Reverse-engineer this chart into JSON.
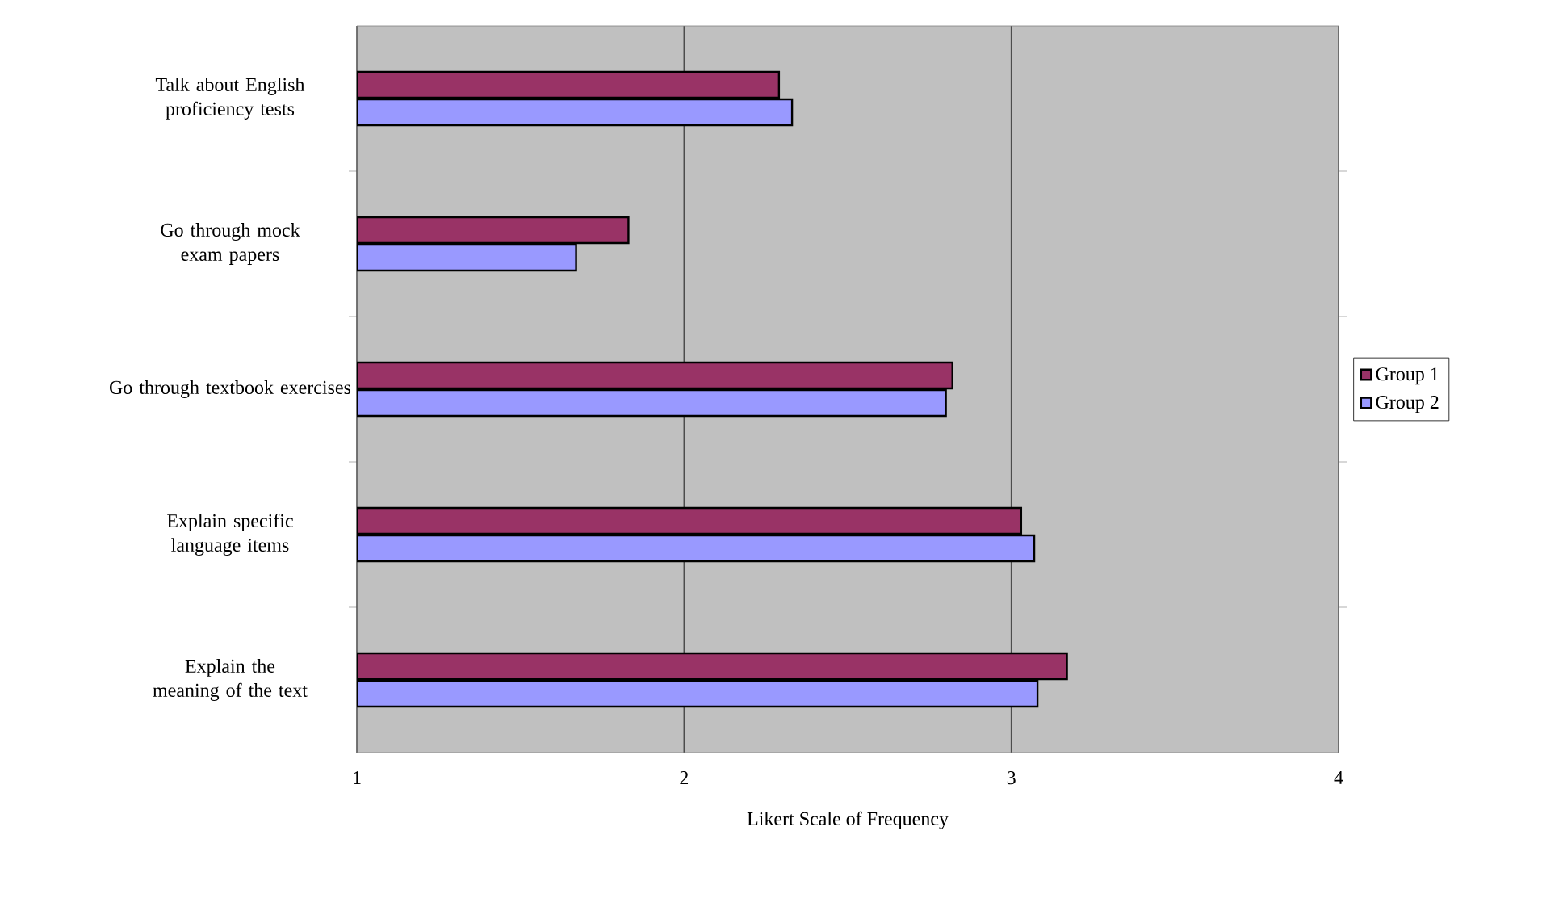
{
  "chart_data": {
    "type": "bar",
    "orientation": "horizontal",
    "xlabel": "Likert Scale of Frequency",
    "categories": [
      "Talk about English proficiency tests",
      "Go through mock exam papers",
      "Go through textbook exercises",
      "Explain specific language items",
      "Explain the meaning of the text"
    ],
    "series": [
      {
        "name": "Group 1",
        "color": "#993366",
        "values": [
          2.29,
          1.83,
          2.82,
          3.03,
          3.17
        ]
      },
      {
        "name": "Group 2",
        "color": "#9999ff",
        "values": [
          2.33,
          1.67,
          2.8,
          3.07,
          3.08
        ]
      }
    ],
    "xlim": [
      1,
      4
    ],
    "xticks": [
      1,
      2,
      3,
      4
    ],
    "grid": "x",
    "legend": "right"
  }
}
